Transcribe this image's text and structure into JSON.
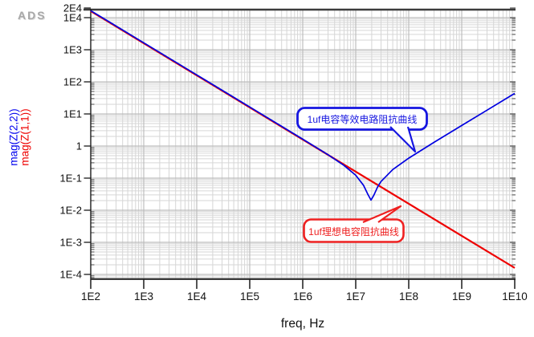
{
  "app": {
    "logo_text": "ADS"
  },
  "chart_data": {
    "type": "line",
    "title": "",
    "xlabel": "freq, Hz",
    "x_scale": "log",
    "y_scale": "log",
    "x_range": [
      100,
      10000000000
    ],
    "y_range": [
      7e-05,
      20000
    ],
    "grid": true,
    "x_ticks": [
      {
        "label": "1E2",
        "value": 100
      },
      {
        "label": "1E3",
        "value": 1000
      },
      {
        "label": "1E4",
        "value": 10000
      },
      {
        "label": "1E5",
        "value": 100000
      },
      {
        "label": "1E6",
        "value": 1000000
      },
      {
        "label": "1E7",
        "value": 10000000
      },
      {
        "label": "1E8",
        "value": 100000000
      },
      {
        "label": "1E9",
        "value": 1000000000
      },
      {
        "label": "1E10",
        "value": 10000000000
      }
    ],
    "y_ticks": [
      {
        "label": "2E4",
        "value": 20000
      },
      {
        "label": "1E4",
        "value": 10000
      },
      {
        "label": "1E3",
        "value": 1000
      },
      {
        "label": "1E2",
        "value": 100
      },
      {
        "label": "1E1",
        "value": 10
      },
      {
        "label": "1",
        "value": 1
      },
      {
        "label": "1E-1",
        "value": 0.1
      },
      {
        "label": "1E-2",
        "value": 0.01
      },
      {
        "label": "1E-3",
        "value": 0.001
      },
      {
        "label": "1E-4",
        "value": 0.0001
      }
    ],
    "y_axis_labels": [
      {
        "text": "mag(Z(2,2))",
        "color": "#0000ee"
      },
      {
        "text": "mag(Z(1,1))",
        "color": "#ee0000"
      }
    ],
    "series": [
      {
        "name": "mag(Z(1,1))",
        "color": "#ee0000",
        "freq": [
          100,
          1000,
          10000,
          100000,
          1000000,
          10000000,
          100000000,
          1000000000,
          10000000000
        ],
        "mag": [
          15915.5,
          1591.55,
          159.155,
          15.9155,
          1.59155,
          0.159155,
          0.0159155,
          0.00159155,
          0.000159155
        ]
      },
      {
        "name": "mag(Z(2,2))",
        "color": "#0000e0",
        "freq": [
          100,
          1000,
          10000,
          100000,
          1000000,
          3000000,
          6000000,
          10000000,
          14000000,
          17000000,
          19400000,
          22000000,
          26000000,
          30000000,
          50000000,
          100000000,
          300000000,
          1000000000,
          3000000000,
          10000000000
        ],
        "mag": [
          15915.5,
          1591.5,
          159.15,
          15.915,
          1.5874,
          0.5183,
          0.2401,
          0.1188,
          0.0583,
          0.0298,
          0.02,
          0.0285,
          0.0522,
          0.0759,
          0.1788,
          0.4056,
          1.2624,
          4.2081,
          12.629,
          42.097
        ]
      }
    ],
    "annotations": [
      {
        "text": "1uf电容等效电路阻抗曲线",
        "color": "#1616e0",
        "points_to": "mag(Z(2,2))"
      },
      {
        "text": "1uf理想电容阻抗曲线",
        "color": "#ee2020",
        "points_to": "mag(Z(1,1))"
      }
    ]
  }
}
